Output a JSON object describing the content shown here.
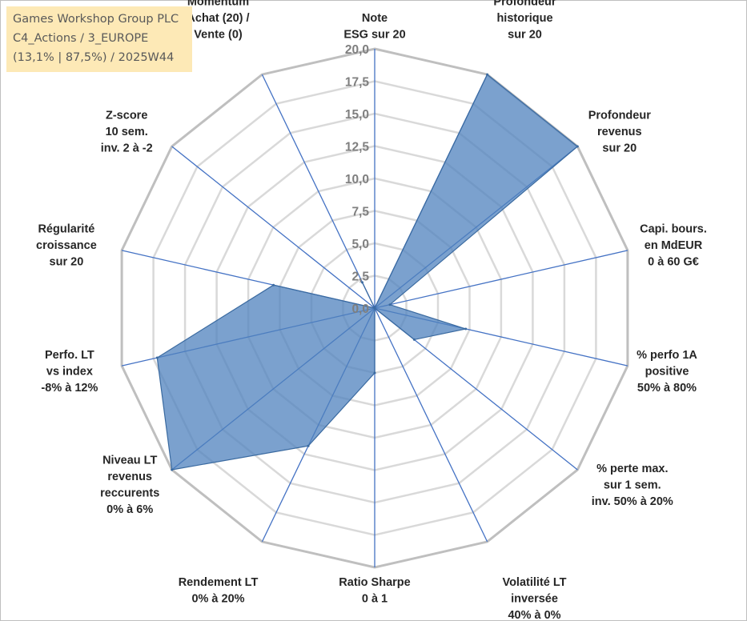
{
  "header": {
    "line1": "Games Workshop Group PLC",
    "line2": "C4_Actions / 3_EUROPE",
    "line3": "(13,1% | 87,5%) / 2025W44"
  },
  "chart_data": {
    "type": "radar",
    "r_min": 0,
    "r_max": 20,
    "tick_values": [
      0,
      2.5,
      5,
      7.5,
      10,
      12.5,
      15,
      17.5,
      20
    ],
    "tick_labels": [
      "0,0",
      "2,5",
      "5,0",
      "7,5",
      "10,0",
      "12,5",
      "15,0",
      "17,5",
      "20,0"
    ],
    "categories": [
      {
        "lines": [
          "Note",
          "ESG sur 20"
        ]
      },
      {
        "lines": [
          "Profondeur",
          "historique",
          "sur 20"
        ]
      },
      {
        "lines": [
          "Profondeur",
          "revenus",
          "sur 20"
        ]
      },
      {
        "lines": [
          "Capi. bours.",
          "en MdEUR",
          "0 à 60 G€"
        ]
      },
      {
        "lines": [
          "% perfo 1A",
          "positive",
          "50% à 80%"
        ]
      },
      {
        "lines": [
          "% perte max.",
          "sur 1 sem.",
          "inv. 50% à 20%"
        ]
      },
      {
        "lines": [
          "Volatilité LT",
          "inversée",
          "40% à 0%"
        ]
      },
      {
        "lines": [
          "Ratio Sharpe",
          "0 à 1"
        ]
      },
      {
        "lines": [
          "Rendement LT",
          "0% à 20%"
        ]
      },
      {
        "lines": [
          "Niveau LT",
          "revenus",
          "reccurents",
          "0% à 6%"
        ]
      },
      {
        "lines": [
          "Perfo. LT",
          "vs index",
          "-8% à 12%"
        ]
      },
      {
        "lines": [
          "Régularité",
          "croissance",
          "sur 20"
        ]
      },
      {
        "lines": [
          "Z-score",
          "10 sem.",
          "inv. 2 à -2"
        ]
      },
      {
        "lines": [
          "Momentum",
          "Achat (20) /",
          "Vente (0)"
        ]
      }
    ],
    "series": [
      {
        "name": "Games Workshop Group PLC",
        "values": [
          0,
          20,
          20,
          1.2,
          7.2,
          3.9,
          0,
          5,
          11.8,
          20,
          17.2,
          8,
          0,
          2.2
        ],
        "color": "#4f81bd"
      }
    ]
  }
}
